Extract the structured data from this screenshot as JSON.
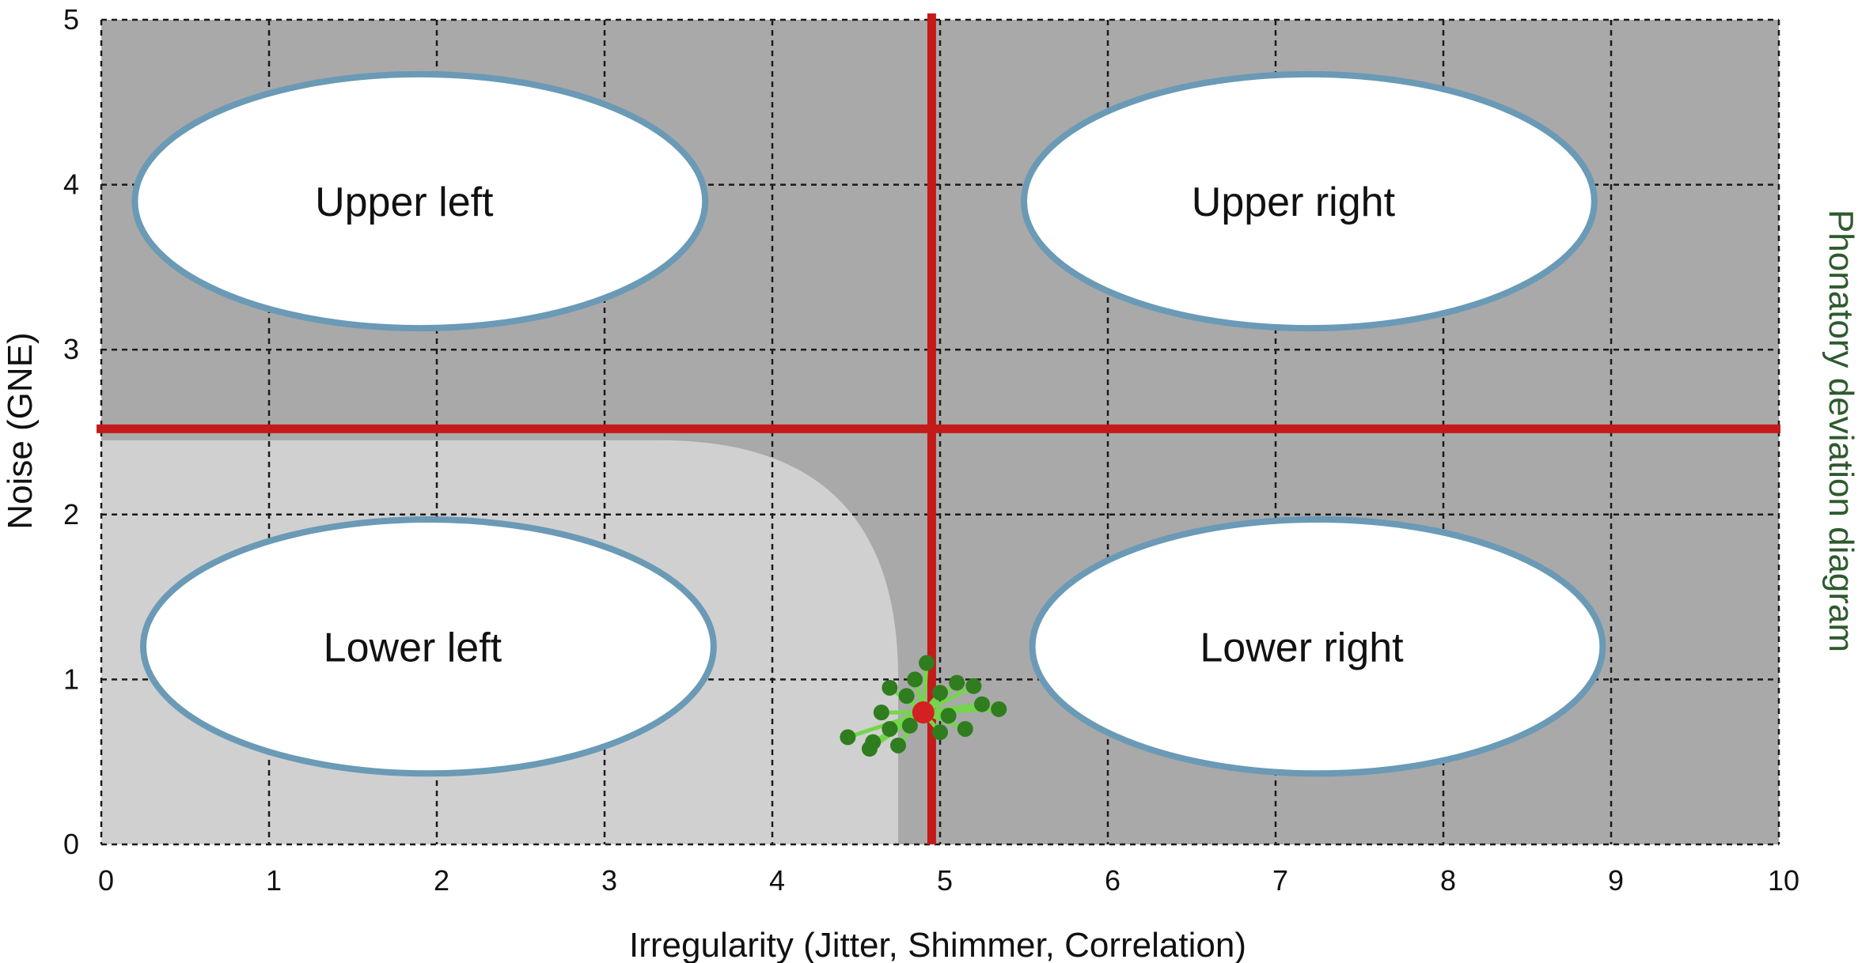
{
  "chart_data": {
    "type": "scatter",
    "title": "Phonatory deviation diagram",
    "xlabel": "Irregularity (Jitter, Shimmer, Correlation)",
    "ylabel": "Noise (GNE)",
    "xlim": [
      0,
      10
    ],
    "ylim": [
      0,
      5
    ],
    "x_ticks": [
      "0",
      "1",
      "2",
      "3",
      "4",
      "5",
      "6",
      "7",
      "8",
      "9",
      "10"
    ],
    "y_ticks": [
      "0",
      "1",
      "2",
      "3",
      "4",
      "5"
    ],
    "grid": true,
    "threshold_x": 4.95,
    "threshold_y": 2.52,
    "normal_region_boundary": {
      "x": 4.75,
      "y": 2.45
    },
    "quadrants": [
      {
        "label": "Upper left",
        "cx": 1.9,
        "cy": 3.9,
        "rx": 1.7,
        "ry": 0.77
      },
      {
        "label": "Upper right",
        "cx": 7.2,
        "cy": 3.9,
        "rx": 1.7,
        "ry": 0.77
      },
      {
        "label": "Lower left",
        "cx": 1.95,
        "cy": 1.2,
        "rx": 1.7,
        "ry": 0.77
      },
      {
        "label": "Lower right",
        "cx": 7.25,
        "cy": 1.2,
        "rx": 1.7,
        "ry": 0.77
      }
    ],
    "points": [
      {
        "x": 4.45,
        "y": 0.65
      },
      {
        "x": 4.6,
        "y": 0.62
      },
      {
        "x": 4.75,
        "y": 0.6
      },
      {
        "x": 4.58,
        "y": 0.58
      },
      {
        "x": 4.7,
        "y": 0.7
      },
      {
        "x": 4.82,
        "y": 0.72
      },
      {
        "x": 4.65,
        "y": 0.8
      },
      {
        "x": 4.9,
        "y": 0.82
      },
      {
        "x": 4.8,
        "y": 0.9
      },
      {
        "x": 5.0,
        "y": 0.92
      },
      {
        "x": 5.1,
        "y": 0.98
      },
      {
        "x": 5.2,
        "y": 0.96
      },
      {
        "x": 5.25,
        "y": 0.85
      },
      {
        "x": 5.35,
        "y": 0.82
      },
      {
        "x": 5.15,
        "y": 0.7
      },
      {
        "x": 5.0,
        "y": 0.68
      },
      {
        "x": 4.92,
        "y": 1.1
      },
      {
        "x": 4.85,
        "y": 1.0
      },
      {
        "x": 5.05,
        "y": 0.78
      },
      {
        "x": 4.7,
        "y": 0.95
      }
    ],
    "mean_point": {
      "x": 4.9,
      "y": 0.8
    },
    "colors": {
      "background_dark": "#a9a9a9",
      "background_light": "#d0d0d0",
      "threshold_line": "#c41a1a",
      "ellipse_stroke": "#6a9ab5",
      "ellipse_fill": "#ffffff",
      "point": "#2f7d1f",
      "point_line": "#74d64a",
      "mean_point": "#d32020",
      "side_title": "#2e5a2e"
    }
  }
}
